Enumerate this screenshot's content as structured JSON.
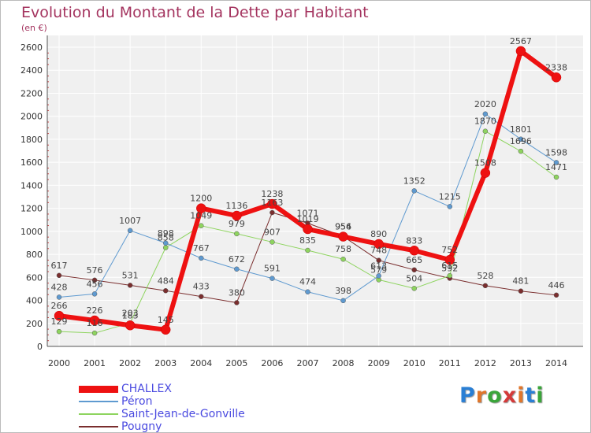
{
  "title": "Evolution du Montant de la Dette par Habitant",
  "subtitle": "(en €)",
  "brand": {
    "text": "Proxiti",
    "letter_colors": [
      "#2a7fd4",
      "#e0762b",
      "#3aa53a",
      "#d43a3a",
      "#e0762b",
      "#2a7fd4",
      "#3aa53a"
    ]
  },
  "chart_data": {
    "type": "line",
    "x": [
      "2000",
      "2001",
      "2002",
      "2003",
      "2004",
      "2005",
      "2006",
      "2007",
      "2008",
      "2009",
      "2010",
      "2011",
      "2012",
      "2013",
      "2014"
    ],
    "ylim": [
      0,
      2600
    ],
    "yticks": [
      0,
      200,
      400,
      600,
      800,
      1000,
      1200,
      1400,
      1600,
      1800,
      2000,
      2200,
      2400,
      2600
    ],
    "grid": true,
    "series": [
      {
        "name": "Pougny",
        "color": "#7a2e2e",
        "width": 1,
        "values": [
          617,
          576,
          531,
          484,
          433,
          380,
          1163,
          1071,
          956,
          748,
          665,
          592,
          528,
          481,
          446
        ]
      },
      {
        "name": "Saint-Jean-de-Gonville",
        "color": "#8ed45f",
        "width": 1,
        "values": [
          129,
          116,
          203,
          858,
          1049,
          979,
          907,
          835,
          758,
          579,
          504,
          615,
          1870,
          1696,
          1471
        ]
      },
      {
        "name": "Péron",
        "color": "#5f9ad0",
        "width": 1,
        "values": [
          428,
          456,
          1007,
          898,
          767,
          672,
          591,
          474,
          398,
          613,
          1352,
          1215,
          2020,
          1801,
          1598
        ]
      },
      {
        "name": "CHALLEX",
        "color": "#ee1111",
        "width": 6,
        "values": [
          266,
          226,
          183,
          145,
          1200,
          1136,
          1238,
          1019,
          954,
          890,
          833,
          752,
          1508,
          2567,
          2338
        ]
      }
    ],
    "legend": {
      "position": "bottom-left",
      "order": [
        "CHALLEX",
        "Péron",
        "Saint-Jean-de-Gonville",
        "Pougny"
      ]
    }
  }
}
